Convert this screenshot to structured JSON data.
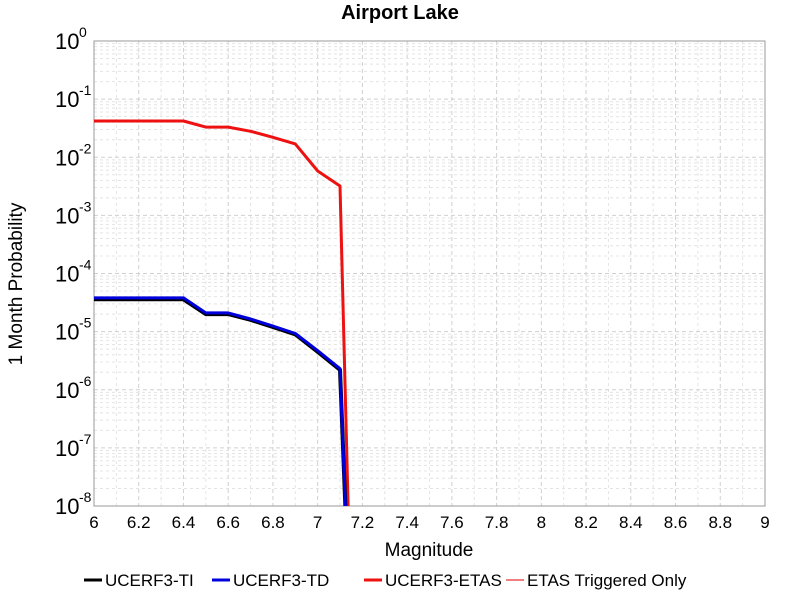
{
  "chart_data": {
    "type": "line",
    "title": "Airport Lake",
    "xlabel": "Magnitude",
    "ylabel": "1 Month Probability",
    "xlim": [
      6,
      9
    ],
    "ylim_exponents": [
      -8,
      0
    ],
    "y_scale": "log",
    "grid": true,
    "legend_position": "bottom",
    "x_ticks": [
      "6",
      "6.2",
      "6.4",
      "6.6",
      "6.8",
      "7",
      "7.2",
      "7.4",
      "7.6",
      "7.8",
      "8",
      "8.2",
      "8.4",
      "8.6",
      "8.8",
      "9"
    ],
    "y_tick_base": "10",
    "y_tick_exponents": [
      "0",
      "-1",
      "-2",
      "-3",
      "-4",
      "-5",
      "-6",
      "-7",
      "-8"
    ],
    "series": [
      {
        "name": "UCERF3-TI",
        "color": "#000000",
        "x": [
          6.0,
          6.4,
          6.5,
          6.6,
          6.7,
          6.8,
          6.9,
          7.0,
          7.1,
          7.13
        ],
        "y": [
          3.6e-05,
          3.6e-05,
          2e-05,
          2e-05,
          1.6e-05,
          1.2e-05,
          9e-06,
          4.5e-06,
          2.2e-06,
          1e-09
        ]
      },
      {
        "name": "UCERF3-TD",
        "color": "#0000dd",
        "x": [
          6.0,
          6.4,
          6.5,
          6.6,
          6.7,
          6.8,
          6.9,
          7.0,
          7.1,
          7.13
        ],
        "y": [
          3.8e-05,
          3.8e-05,
          2.1e-05,
          2.1e-05,
          1.65e-05,
          1.25e-05,
          9.3e-06,
          4.7e-06,
          2.3e-06,
          1e-09
        ]
      },
      {
        "name": "UCERF3-ETAS",
        "color": "#ee1111",
        "x": [
          6.0,
          6.4,
          6.5,
          6.6,
          6.7,
          6.8,
          6.9,
          7.0,
          7.1,
          7.14
        ],
        "y": [
          0.042,
          0.042,
          0.033,
          0.033,
          0.028,
          0.022,
          0.017,
          0.0058,
          0.0032,
          1e-09
        ]
      },
      {
        "name": "ETAS Triggered Only",
        "color": "#f08080",
        "x": [],
        "y": []
      }
    ]
  }
}
